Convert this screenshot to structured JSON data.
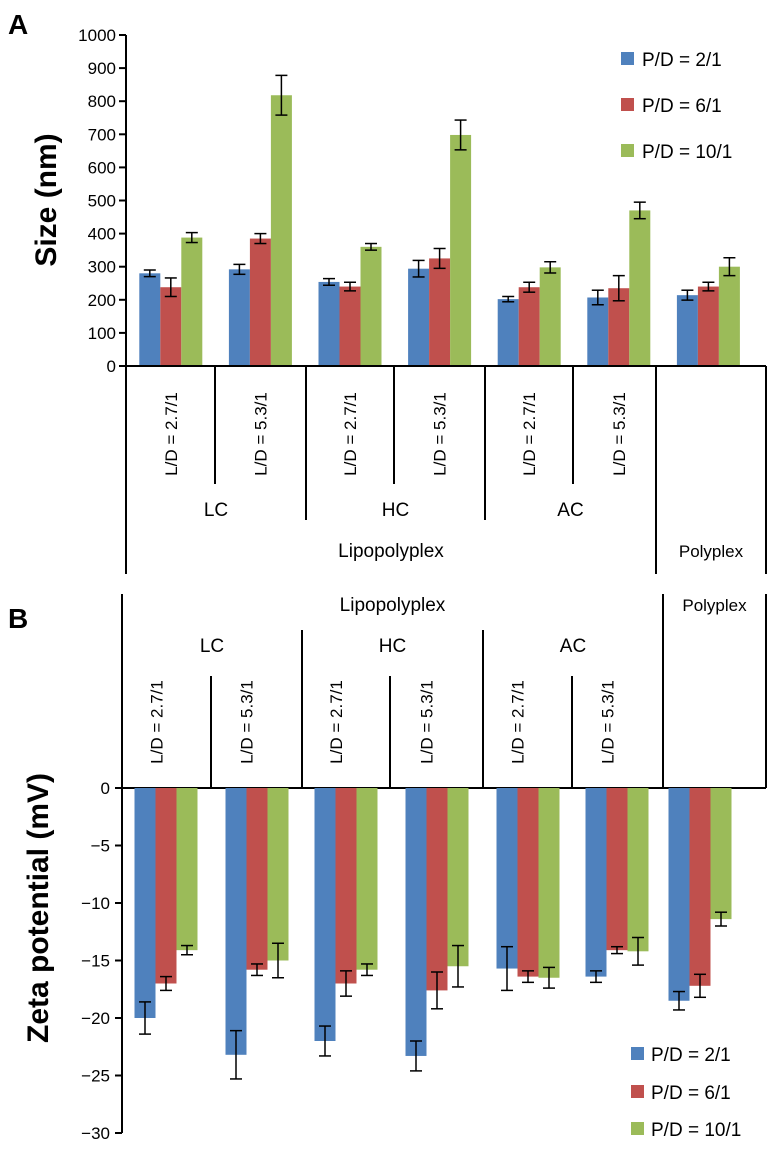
{
  "chart_data": [
    {
      "panel": "A",
      "type": "bar",
      "ylabel": "Size (nm)",
      "ylim": [
        0,
        1000
      ],
      "yticks": [
        "0",
        "100",
        "200",
        "300",
        "400",
        "500",
        "600",
        "700",
        "800",
        "900",
        "1000"
      ],
      "categories": [
        "L/D = 2.7/1",
        "L/D = 5.3/1",
        "L/D = 2.7/1",
        "L/D = 5.3/1",
        "L/D = 2.7/1",
        "L/D = 5.3/1",
        ""
      ],
      "groups": [
        "LC",
        "HC",
        "AC"
      ],
      "supergroups": [
        "Lipopolyplex",
        "Polyplex"
      ],
      "legend_position": "top-right",
      "series": [
        {
          "name": "P/D = 2/1",
          "color": "#4f81bd",
          "values": [
            280,
            292,
            254,
            294,
            202,
            207,
            214
          ],
          "errors": [
            10,
            15,
            10,
            25,
            8,
            22,
            15
          ]
        },
        {
          "name": "P/D = 6/1",
          "color": "#c0504d",
          "values": [
            238,
            385,
            240,
            325,
            238,
            235,
            240
          ],
          "errors": [
            28,
            15,
            13,
            30,
            15,
            38,
            13
          ]
        },
        {
          "name": "P/D = 10/1",
          "color": "#9bbb59",
          "values": [
            388,
            818,
            360,
            698,
            298,
            470,
            300
          ],
          "errors": [
            15,
            60,
            10,
            45,
            17,
            25,
            27
          ]
        }
      ]
    },
    {
      "panel": "B",
      "type": "bar",
      "ylabel": "Zeta potential (mV)",
      "ylim": [
        -30,
        0
      ],
      "yticks": [
        "0",
        "−5",
        "−10",
        "−15",
        "−20",
        "−25",
        "−30"
      ],
      "categories": [
        "L/D = 2.7/1",
        "L/D = 5.3/1",
        "L/D = 2.7/1",
        "L/D = 5.3/1",
        "L/D = 2.7/1",
        "L/D = 5.3/1",
        ""
      ],
      "groups": [
        "LC",
        "HC",
        "AC"
      ],
      "supergroups": [
        "Lipopolyplex",
        "Polyplex"
      ],
      "legend_position": "bottom-right",
      "series": [
        {
          "name": "P/D = 2/1",
          "color": "#4f81bd",
          "values": [
            -20.0,
            -23.2,
            -22.0,
            -23.3,
            -15.7,
            -16.4,
            -18.5
          ],
          "errors": [
            1.4,
            2.1,
            1.3,
            1.3,
            1.9,
            0.5,
            0.8
          ]
        },
        {
          "name": "P/D = 6/1",
          "color": "#c0504d",
          "values": [
            -17.0,
            -15.8,
            -17.0,
            -17.6,
            -16.4,
            -14.1,
            -17.2
          ],
          "errors": [
            0.6,
            0.5,
            1.1,
            1.6,
            0.5,
            0.3,
            1.0
          ]
        },
        {
          "name": "P/D = 10/1",
          "color": "#9bbb59",
          "values": [
            -14.1,
            -15.0,
            -15.8,
            -15.5,
            -16.5,
            -14.2,
            -11.4
          ],
          "errors": [
            0.4,
            1.5,
            0.5,
            1.8,
            0.9,
            1.2,
            0.6
          ]
        }
      ]
    }
  ]
}
